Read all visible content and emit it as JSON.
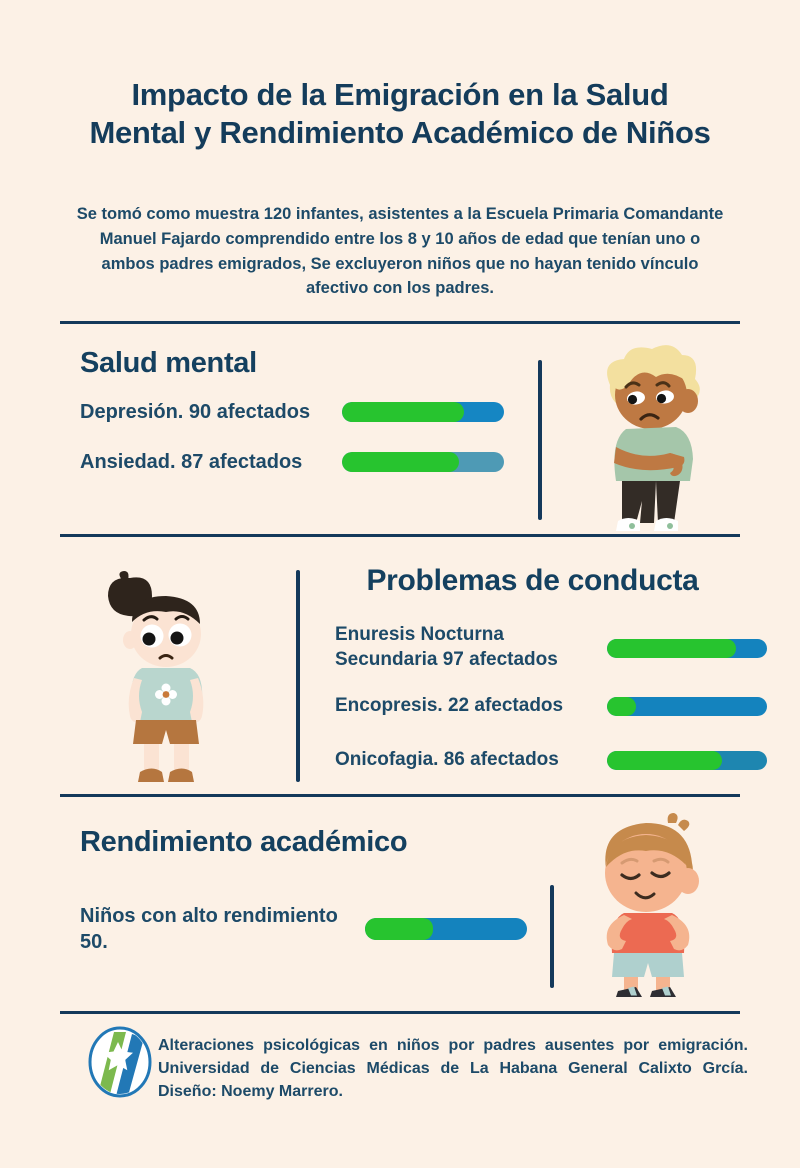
{
  "page": {
    "title": "Impacto de la Emigración en la Salud Mental y Rendimiento Académico de Niños",
    "intro": "Se tomó como muestra 120 infantes, asistentes a la Escuela Primaria Comandante Manuel Fajardo comprendido entre los 8 y 10 años de edad que tenían uno o ambos padres emigrados, Se excluyeron niños que no hayan tenido vínculo afectivo con los padres."
  },
  "colors": {
    "background": "#FCF1E6",
    "navy": "#14395B",
    "green": "#27C42F",
    "blue": "#1586C3",
    "teal": "#4E9AB5"
  },
  "sections": [
    {
      "heading": "Salud mental",
      "illustration": "sad-boy",
      "items": [
        {
          "label": "Depresión. 90 afectados",
          "value": 90,
          "total": 120,
          "fill_color": "#27C42F",
          "track_color": "#1586C3"
        },
        {
          "label": "Ansiedad. 87 afectados",
          "value": 87,
          "total": 120,
          "fill_color": "#27C42F",
          "track_color": "#4E9AB5"
        }
      ]
    },
    {
      "heading": "Problemas de conducta",
      "illustration": "sad-girl",
      "items": [
        {
          "label": "Enuresis Nocturna Secundaria 97 afectados",
          "value": 97,
          "total": 120,
          "fill_color": "#27C42F",
          "track_color": "#1483BE"
        },
        {
          "label": "Encopresis. 22 afectados",
          "value": 22,
          "total": 120,
          "fill_color": "#27C42F",
          "track_color": "#1483BE"
        },
        {
          "label": "Onicofagia. 86 afectados",
          "value": 86,
          "total": 120,
          "fill_color": "#27C42F",
          "track_color": "#1E86B0"
        }
      ]
    },
    {
      "heading": "Rendimiento académico",
      "illustration": "happy-boy",
      "items": [
        {
          "label": "Niños con alto rendimiento 50.",
          "value": 50,
          "total": 120,
          "fill_color": "#27C42F",
          "track_color": "#1483BE"
        }
      ]
    }
  ],
  "footer": {
    "logo": "calixto-garcia-university-logo",
    "text": "Alteraciones psicológicas en niños por padres ausentes por emigración.  Universidad de Ciencias Médicas de La Habana General Calixto Grcía. Diseño: Noemy Marrero."
  },
  "chart_data": [
    {
      "type": "bar",
      "title": "Salud mental",
      "categories": [
        "Depresión",
        "Ansiedad"
      ],
      "values": [
        90,
        87
      ],
      "xlabel": "",
      "ylabel": "afectados",
      "total_sample": 120,
      "legend_position": "none"
    },
    {
      "type": "bar",
      "title": "Problemas de conducta",
      "categories": [
        "Enuresis Nocturna Secundaria",
        "Encopresis",
        "Onicofagia"
      ],
      "values": [
        97,
        22,
        86
      ],
      "xlabel": "",
      "ylabel": "afectados",
      "total_sample": 120,
      "legend_position": "none"
    },
    {
      "type": "bar",
      "title": "Rendimiento académico",
      "categories": [
        "Niños con alto rendimiento"
      ],
      "values": [
        50
      ],
      "xlabel": "",
      "ylabel": "niños",
      "total_sample": 120,
      "legend_position": "none"
    }
  ]
}
